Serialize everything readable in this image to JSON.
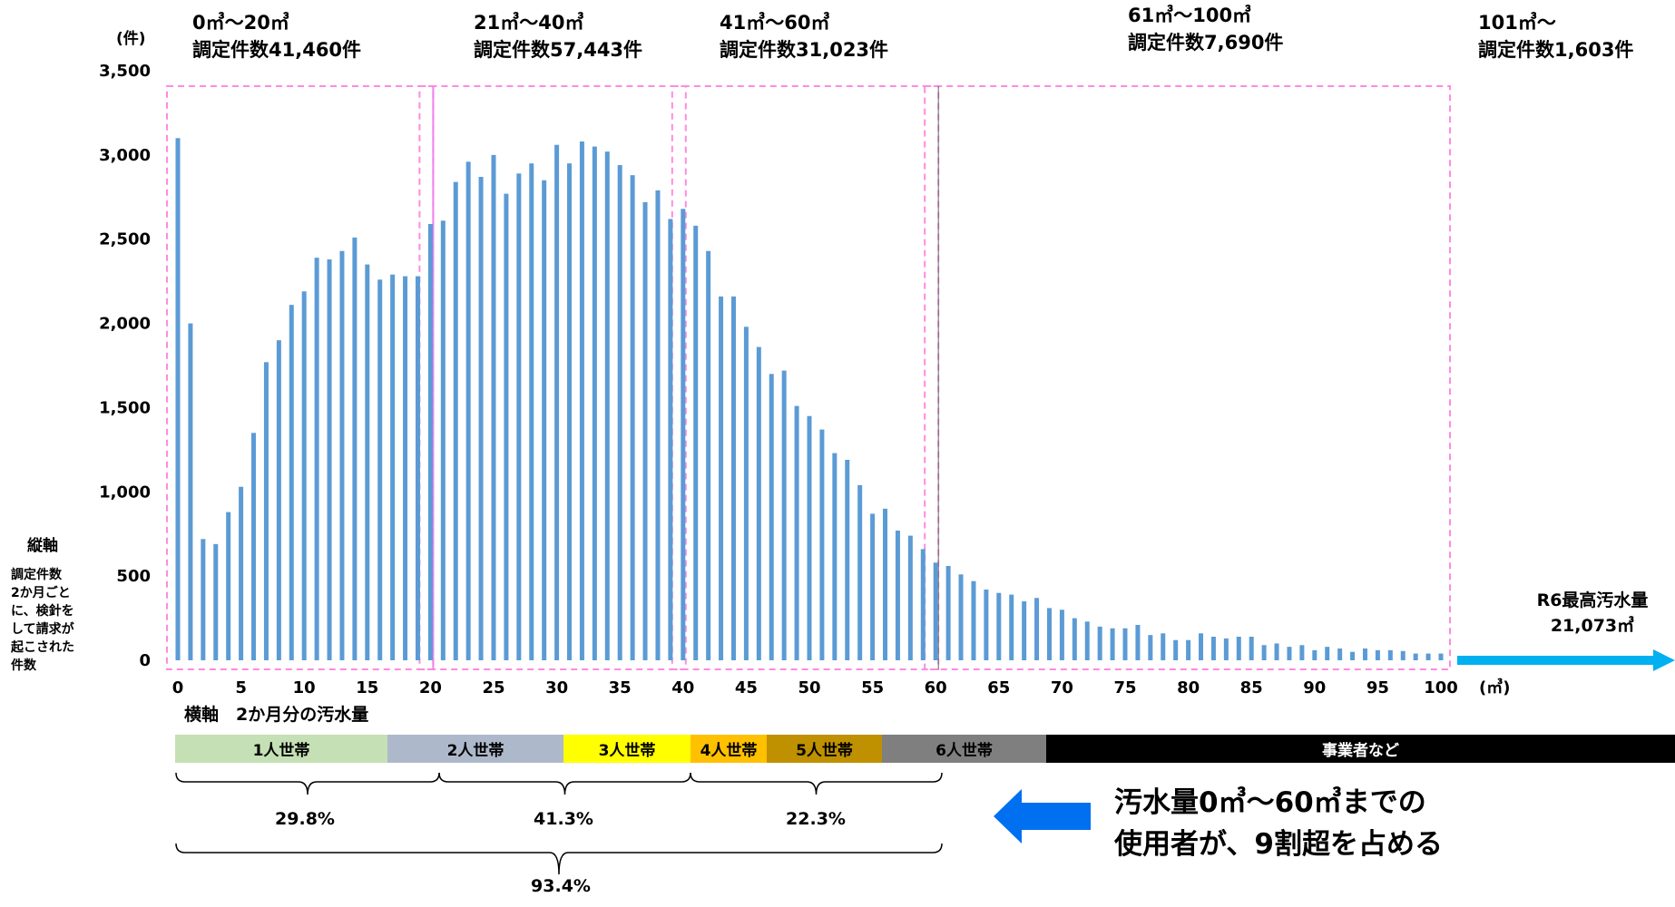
{
  "y_unit": "(件)",
  "x_unit": "(㎥)",
  "y_axis_caption": {
    "title": "縦軸",
    "lines": [
      "調定件数",
      "2か月ごと",
      "に、検針を",
      "して請求が",
      "起こされた",
      "件数"
    ]
  },
  "x_axis_caption": "横軸　2か月分の汚水量",
  "ranges": [
    {
      "range": "0㎥～20㎥",
      "count": "調定件数41,460件"
    },
    {
      "range": "21㎥～40㎥",
      "count": "調定件数57,443件"
    },
    {
      "range": "41㎥～60㎥",
      "count": "調定件数31,023件"
    },
    {
      "range": "61㎥～100㎥",
      "count": "調定件数7,690件"
    },
    {
      "range": "101㎥～",
      "count": "調定件数1,603件"
    }
  ],
  "max_label": {
    "line1": "R6最高汚水量",
    "line2": "21,073㎥"
  },
  "household_bands": [
    {
      "label": "1人世帯",
      "color": "#c5e0b4",
      "text_color": "#000000"
    },
    {
      "label": "2人世帯",
      "color": "#adb9ca",
      "text_color": "#000000"
    },
    {
      "label": "3人世帯",
      "color": "#ffff00",
      "text_color": "#000000"
    },
    {
      "label": "4人世帯",
      "color": "#ffc000",
      "text_color": "#000000"
    },
    {
      "label": "5人世帯",
      "color": "#bf9000",
      "text_color": "#000000"
    },
    {
      "label": "6人世帯",
      "color": "#7f7f7f",
      "text_color": "#000000"
    },
    {
      "label": "事業者など",
      "color": "#000000",
      "text_color": "#ffffff"
    }
  ],
  "percentages": {
    "p1": "29.8%",
    "p2": "41.3%",
    "p3": "22.3%",
    "total": "93.4%"
  },
  "callout": {
    "line1": "汚水量0㎥～60㎥までの",
    "line2": "使用者が、9割超を占める"
  },
  "colors": {
    "bar": "#5b9bd5",
    "dashed_box": "#ff8ae0",
    "arrow_right": "#00b0f0",
    "arrow_left": "#0070f0"
  },
  "chart_data": {
    "type": "bar",
    "ylim": [
      0,
      3500
    ],
    "y_ticks": [
      0,
      500,
      1000,
      1500,
      2000,
      2500,
      3000,
      3500
    ],
    "y_tick_labels": [
      "0",
      "500",
      "1,000",
      "1,500",
      "2,000",
      "2,500",
      "3,000",
      "3,500"
    ],
    "x_ticks": [
      0,
      5,
      10,
      15,
      20,
      25,
      30,
      35,
      40,
      45,
      50,
      55,
      60,
      65,
      70,
      75,
      80,
      85,
      90,
      95,
      100
    ],
    "x": [
      0,
      1,
      2,
      3,
      4,
      5,
      6,
      7,
      8,
      9,
      10,
      11,
      12,
      13,
      14,
      15,
      16,
      17,
      18,
      19,
      20,
      21,
      22,
      23,
      24,
      25,
      26,
      27,
      28,
      29,
      30,
      31,
      32,
      33,
      34,
      35,
      36,
      37,
      38,
      39,
      40,
      41,
      42,
      43,
      44,
      45,
      46,
      47,
      48,
      49,
      50,
      51,
      52,
      53,
      54,
      55,
      56,
      57,
      58,
      59,
      60,
      61,
      62,
      63,
      64,
      65,
      66,
      67,
      68,
      69,
      70,
      71,
      72,
      73,
      74,
      75,
      76,
      77,
      78,
      79,
      80,
      81,
      82,
      83,
      84,
      85,
      86,
      87,
      88,
      89,
      90,
      91,
      92,
      93,
      94,
      95,
      96,
      97,
      98,
      99,
      100
    ],
    "values": [
      3100,
      2000,
      720,
      690,
      880,
      1030,
      1350,
      1770,
      1900,
      2110,
      2190,
      2390,
      2380,
      2430,
      2510,
      2350,
      2260,
      2290,
      2280,
      2280,
      2590,
      2610,
      2840,
      2960,
      2870,
      3000,
      2770,
      2890,
      2950,
      2850,
      3060,
      2950,
      3080,
      3050,
      3020,
      2940,
      2880,
      2720,
      2790,
      2620,
      2680,
      2580,
      2430,
      2160,
      2160,
      1980,
      1860,
      1700,
      1720,
      1510,
      1450,
      1370,
      1230,
      1190,
      1040,
      870,
      900,
      770,
      740,
      660,
      580,
      560,
      510,
      470,
      420,
      400,
      390,
      350,
      370,
      310,
      300,
      250,
      230,
      200,
      190,
      190,
      210,
      150,
      160,
      120,
      120,
      160,
      140,
      130,
      140,
      140,
      90,
      100,
      80,
      90,
      60,
      80,
      70,
      50,
      70,
      60,
      60,
      55,
      40,
      40,
      40
    ]
  }
}
